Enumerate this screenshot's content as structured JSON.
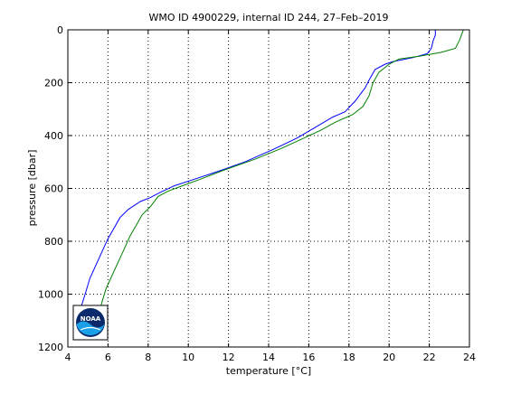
{
  "chart_data": {
    "type": "line",
    "title": "WMO ID 4900229, internal ID 244, 27–Feb–2019",
    "xlabel": "temperature [°C]",
    "ylabel": "pressure [dbar]",
    "xlim": [
      4,
      24
    ],
    "ylim": [
      0,
      1200
    ],
    "y_reversed": true,
    "x_ticks": [
      4,
      6,
      8,
      10,
      12,
      14,
      16,
      18,
      20,
      22,
      24
    ],
    "y_ticks": [
      0,
      200,
      400,
      600,
      800,
      1000,
      1200
    ],
    "grid": true,
    "logo": "NOAA",
    "series": [
      {
        "color": "#0000ff",
        "points": [
          [
            22.3,
            0
          ],
          [
            22.3,
            20
          ],
          [
            22.2,
            40
          ],
          [
            22.1,
            70
          ],
          [
            21.9,
            90
          ],
          [
            21.2,
            105
          ],
          [
            20.2,
            120
          ],
          [
            19.8,
            130
          ],
          [
            19.3,
            150
          ],
          [
            19.0,
            190
          ],
          [
            18.8,
            220
          ],
          [
            18.3,
            270
          ],
          [
            17.8,
            310
          ],
          [
            17.2,
            330
          ],
          [
            16.3,
            370
          ],
          [
            15.4,
            410
          ],
          [
            14.3,
            450
          ],
          [
            12.8,
            500
          ],
          [
            11.5,
            535
          ],
          [
            10.3,
            565
          ],
          [
            9.3,
            590
          ],
          [
            8.6,
            615
          ],
          [
            8.1,
            635
          ],
          [
            7.6,
            650
          ],
          [
            7.0,
            680
          ],
          [
            6.6,
            710
          ],
          [
            6.3,
            750
          ],
          [
            6.0,
            790
          ],
          [
            5.7,
            840
          ],
          [
            5.4,
            890
          ],
          [
            5.1,
            940
          ],
          [
            4.9,
            990
          ],
          [
            4.7,
            1040
          ],
          [
            4.6,
            1060
          ]
        ]
      },
      {
        "color": "#008000",
        "points": [
          [
            23.7,
            0
          ],
          [
            23.6,
            20
          ],
          [
            23.5,
            40
          ],
          [
            23.3,
            70
          ],
          [
            22.6,
            85
          ],
          [
            21.5,
            100
          ],
          [
            20.5,
            110
          ],
          [
            20.0,
            130
          ],
          [
            19.5,
            160
          ],
          [
            19.2,
            200
          ],
          [
            19.0,
            250
          ],
          [
            18.7,
            290
          ],
          [
            18.2,
            320
          ],
          [
            17.3,
            350
          ],
          [
            16.6,
            380
          ],
          [
            15.6,
            415
          ],
          [
            14.6,
            450
          ],
          [
            13.3,
            490
          ],
          [
            11.8,
            530
          ],
          [
            10.6,
            565
          ],
          [
            9.7,
            590
          ],
          [
            9.0,
            610
          ],
          [
            8.5,
            630
          ],
          [
            8.1,
            670
          ],
          [
            7.7,
            700
          ],
          [
            7.4,
            740
          ],
          [
            7.1,
            780
          ],
          [
            6.8,
            830
          ],
          [
            6.5,
            880
          ],
          [
            6.2,
            930
          ],
          [
            5.9,
            980
          ],
          [
            5.7,
            1030
          ],
          [
            5.6,
            1060
          ]
        ]
      }
    ]
  }
}
